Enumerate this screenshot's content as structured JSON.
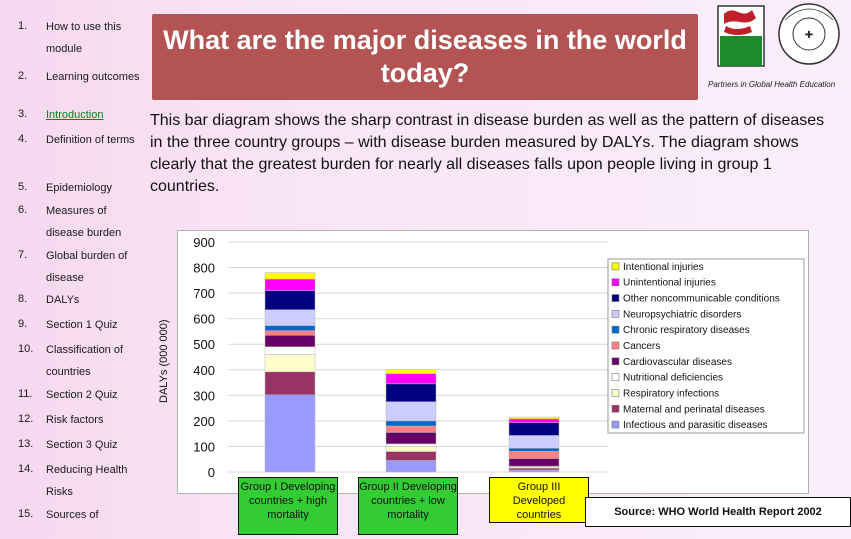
{
  "nav": {
    "items": [
      {
        "num": "1.",
        "label": "How to use this module"
      },
      {
        "num": "2.",
        "label": "Learning outcomes"
      },
      {
        "num": "3.",
        "label": "Introduction",
        "active": true
      },
      {
        "num": "4.",
        "label": "Definition of terms"
      },
      {
        "num": "5.",
        "label": "Epidemiology"
      },
      {
        "num": "6.",
        "label": "Measures of disease burden"
      },
      {
        "num": "7.",
        "label": "Global burden of disease"
      },
      {
        "num": "8.",
        "label": "DALYs"
      },
      {
        "num": "9.",
        "label": "Section 1 Quiz"
      },
      {
        "num": "10.",
        "label": "Classification of countries"
      },
      {
        "num": "11.",
        "label": "Section 2 Quiz"
      },
      {
        "num": "12.",
        "label": "Risk factors"
      },
      {
        "num": "13.",
        "label": "Section 3 Quiz"
      },
      {
        "num": "14.",
        "label": "Reducing Health Risks"
      },
      {
        "num": "15.",
        "label": "Sources of"
      }
    ]
  },
  "header": {
    "title": "What are the major diseases in the world today?",
    "partner_caption": "Partners in Global Health Education"
  },
  "intro": "This bar diagram shows the sharp contrast in disease burden as well as the pattern of diseases in the three country groups – with disease burden measured by DALYs. The diagram shows clearly that the greatest burden for nearly all diseases falls upon people living in group 1 countries.",
  "chart_data": {
    "type": "bar",
    "stacked": true,
    "ylabel": "DALYs (000 000)",
    "ylim": [
      0,
      900
    ],
    "yticks": [
      0,
      100,
      200,
      300,
      400,
      500,
      600,
      700,
      800,
      900
    ],
    "categories": [
      "Group I Developing countries + high mortality",
      "Group II Developing countries + low mortality",
      "Group III Developed countries"
    ],
    "legend_position": "right",
    "series": [
      {
        "name": "Infectious and parasitic diseases",
        "color": "#9999ff",
        "values": [
          302,
          45,
          8
        ]
      },
      {
        "name": "Maternal and perinatal diseases",
        "color": "#993366",
        "values": [
          90,
          35,
          7
        ]
      },
      {
        "name": "Respiratory infections",
        "color": "#ffffcc",
        "values": [
          68,
          20,
          5
        ]
      },
      {
        "name": "Nutritional deficiencies",
        "color": "#ffffff",
        "values": [
          30,
          10,
          3
        ]
      },
      {
        "name": "Cardiovascular diseases",
        "color": "#660066",
        "values": [
          45,
          45,
          30
        ]
      },
      {
        "name": "Cancers",
        "color": "#ff8080",
        "values": [
          18,
          25,
          28
        ]
      },
      {
        "name": "Chronic respiratory diseases",
        "color": "#0066cc",
        "values": [
          20,
          20,
          12
        ]
      },
      {
        "name": "Neuropsychiatric disorders",
        "color": "#ccccff",
        "values": [
          62,
          75,
          50
        ]
      },
      {
        "name": "Other noncommunicable conditions",
        "color": "#000080",
        "values": [
          75,
          70,
          50
        ]
      },
      {
        "name": "Unintentional injuries",
        "color": "#ff00ff",
        "values": [
          45,
          40,
          15
        ]
      },
      {
        "name": "Intentional injuries",
        "color": "#ffff00",
        "values": [
          25,
          15,
          7
        ]
      }
    ]
  },
  "groups": [
    {
      "label": "Group I Developing countries + high mortality",
      "color": "#33cc33"
    },
    {
      "label": "Group II Developing countries + low mortality",
      "color": "#33cc33"
    },
    {
      "label": "Group III Developed countries",
      "color": "#ffff00"
    }
  ],
  "source": "Source: WHO World Health Report 2002"
}
